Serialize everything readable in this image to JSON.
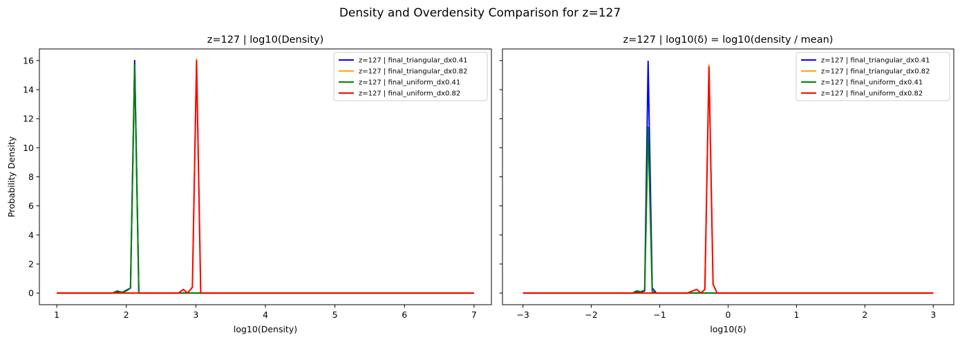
{
  "figure_title": "Density and Overdensity Comparison for z=127",
  "chart_data": [
    {
      "type": "line",
      "title": "z=127 | log10(Density)",
      "xlabel": "log10(Density)",
      "ylabel": "Probability Density",
      "xlim": [
        0.75,
        7.25
      ],
      "ylim": [
        -0.8,
        16.8
      ],
      "xticks": [
        1,
        2,
        3,
        4,
        5,
        6,
        7
      ],
      "xtick_labels": [
        "1",
        "2",
        "3",
        "4",
        "5",
        "6",
        "7"
      ],
      "yticks": [
        0,
        2,
        4,
        6,
        8,
        10,
        12,
        14,
        16
      ],
      "ytick_labels": [
        "0",
        "2",
        "4",
        "6",
        "8",
        "10",
        "12",
        "14",
        "16"
      ],
      "grid": false,
      "legend_position": "top-right",
      "series": [
        {
          "name": "z=127 | final_triangular_dx0.41",
          "color": "#0000ff",
          "x": [
            1.0,
            1.5,
            1.8,
            1.87,
            1.94,
            2.0,
            2.06,
            2.12,
            2.18,
            2.24,
            3.0,
            7.0
          ],
          "y": [
            0,
            0,
            0,
            0.1,
            0.05,
            0.15,
            0.35,
            16.0,
            0,
            0,
            0,
            0
          ]
        },
        {
          "name": "z=127 | final_triangular_dx0.82",
          "color": "#ffa500",
          "x": [
            1.0,
            2.5,
            2.75,
            2.82,
            2.88,
            2.95,
            3.01,
            3.07,
            3.13,
            7.0
          ],
          "y": [
            0,
            0,
            0,
            0.25,
            0,
            0.4,
            16.1,
            0,
            0,
            0
          ]
        },
        {
          "name": "z=127 | final_uniform_dx0.41",
          "color": "#008000",
          "x": [
            1.0,
            1.5,
            1.8,
            1.87,
            1.94,
            2.0,
            2.06,
            2.12,
            2.18,
            2.24,
            3.0,
            7.0
          ],
          "y": [
            0,
            0,
            0,
            0.15,
            0.05,
            0.2,
            0.35,
            15.7,
            0,
            0,
            0,
            0
          ]
        },
        {
          "name": "z=127 | final_uniform_dx0.82",
          "color": "#ff0000",
          "x": [
            1.0,
            2.5,
            2.75,
            2.82,
            2.88,
            2.95,
            3.01,
            3.07,
            3.13,
            7.0
          ],
          "y": [
            0,
            0,
            0,
            0.25,
            0,
            0.4,
            16.0,
            0,
            0,
            0
          ]
        }
      ]
    },
    {
      "type": "line",
      "title": "z=127 | log10(δ) = log10(density / mean)",
      "xlabel": "log10(δ)",
      "ylabel": "",
      "xlim": [
        -3.3,
        3.3
      ],
      "ylim": [
        -0.8,
        16.8
      ],
      "xticks": [
        -3,
        -2,
        -1,
        0,
        1,
        2,
        3
      ],
      "xtick_labels": [
        "−3",
        "−2",
        "−1",
        "0",
        "1",
        "2",
        "3"
      ],
      "yticks": [
        0,
        2,
        4,
        6,
        8,
        10,
        12,
        14,
        16
      ],
      "ytick_labels": [
        "",
        "",
        "",
        "",
        "",
        "",
        "",
        "",
        ""
      ],
      "grid": false,
      "legend_position": "top-right",
      "series": [
        {
          "name": "z=127 | final_triangular_dx0.41",
          "color": "#0000ff",
          "x": [
            -3.0,
            -1.6,
            -1.4,
            -1.34,
            -1.28,
            -1.22,
            -1.17,
            -1.11,
            -1.05,
            -0.99,
            3.0
          ],
          "y": [
            0,
            0,
            0,
            0.1,
            0.05,
            0.15,
            15.95,
            0.35,
            0,
            0,
            0
          ]
        },
        {
          "name": "z=127 | final_triangular_dx0.82",
          "color": "#ffa500",
          "x": [
            -3.0,
            -0.6,
            -0.46,
            -0.4,
            -0.34,
            -0.28,
            -0.22,
            -0.16,
            -0.1,
            3.0
          ],
          "y": [
            0,
            0,
            0.25,
            0,
            0.25,
            15.7,
            0.6,
            0,
            0,
            0
          ]
        },
        {
          "name": "z=127 | final_uniform_dx0.41",
          "color": "#008000",
          "x": [
            -3.0,
            -1.6,
            -1.4,
            -1.34,
            -1.28,
            -1.22,
            -1.17,
            -1.11,
            -1.05,
            -0.99,
            3.0
          ],
          "y": [
            0,
            0,
            0,
            0.15,
            0.1,
            0.2,
            11.4,
            0.1,
            0,
            0,
            0
          ]
        },
        {
          "name": "z=127 | final_uniform_dx0.82",
          "color": "#ff0000",
          "x": [
            -3.0,
            -0.6,
            -0.46,
            -0.4,
            -0.34,
            -0.28,
            -0.22,
            -0.16,
            -0.1,
            3.0
          ],
          "y": [
            0,
            0,
            0.25,
            0,
            0.25,
            15.55,
            0.6,
            0,
            0,
            0
          ]
        }
      ]
    }
  ]
}
